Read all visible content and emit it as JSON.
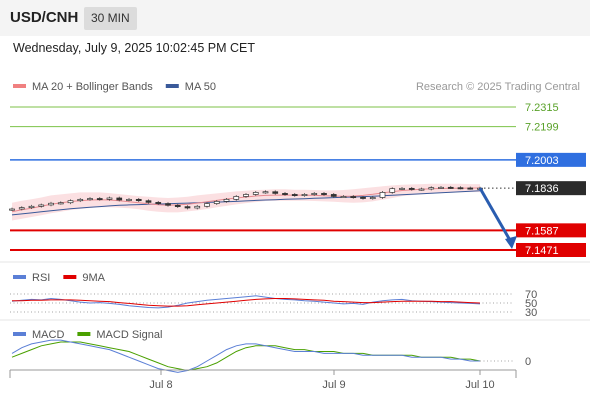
{
  "header": {
    "symbol": "USD/CNH",
    "timeframe": "30 MIN"
  },
  "datetime": "Wednesday, July 9, 2025 10:02:45 PM CET",
  "credit": "Research © 2025 Trading Central",
  "legend_main": [
    {
      "label": "MA 20 + Bollinger Bands",
      "color": "#f08080"
    },
    {
      "label": "MA 50",
      "color": "#3a5a9a"
    }
  ],
  "legend_rsi": [
    {
      "label": "RSI",
      "color": "#5b7fd6"
    },
    {
      "label": "9MA",
      "color": "#e00000"
    }
  ],
  "legend_macd": [
    {
      "label": "MACD",
      "color": "#5b7fd6"
    },
    {
      "label": "MACD Signal",
      "color": "#4aa000"
    }
  ],
  "colors": {
    "resistance": "#7cc247",
    "pivot": "#2f6fe0",
    "support": "#e00000",
    "last": "#2b2b2b",
    "arrow": "#2a5db0"
  },
  "chart_data": {
    "type": "line",
    "x_ticks": [
      "Jul 8",
      "Jul 9",
      "Jul 10"
    ],
    "levels": [
      {
        "value": 7.2315,
        "label": "7.2315",
        "kind": "resistance"
      },
      {
        "value": 7.2199,
        "label": "7.2199",
        "kind": "resistance"
      },
      {
        "value": 7.2003,
        "label": "7.2003",
        "kind": "pivot"
      },
      {
        "value": 7.1836,
        "label": "7.1836",
        "kind": "last"
      },
      {
        "value": 7.1587,
        "label": "7.1587",
        "kind": "support"
      },
      {
        "value": 7.1471,
        "label": "7.1471",
        "kind": "support"
      }
    ],
    "price": [
      7.1713,
      7.1721,
      7.1729,
      7.1737,
      7.1747,
      7.175,
      7.1762,
      7.177,
      7.1775,
      7.177,
      7.1778,
      7.1766,
      7.177,
      7.1762,
      7.1752,
      7.1745,
      7.1735,
      7.1727,
      7.1719,
      7.1729,
      7.1745,
      7.1758,
      7.177,
      7.1787,
      7.1799,
      7.1811,
      7.1815,
      7.1805,
      7.1799,
      7.1793,
      7.1799,
      7.1805,
      7.1799,
      7.1787,
      7.1787,
      7.1782,
      7.1776,
      7.1781,
      7.1811,
      7.1833,
      7.1835,
      7.1829,
      7.1831,
      7.1839,
      7.1841,
      7.1839,
      7.1837,
      7.1835,
      7.1836
    ],
    "ma20": [
      7.1697,
      7.1708,
      7.1718,
      7.1729,
      7.1741,
      7.1749,
      7.1757,
      7.1762,
      7.1766,
      7.1768,
      7.1766,
      7.1762,
      7.1756,
      7.175,
      7.1744,
      7.1738,
      7.1735,
      7.1737,
      7.1741,
      7.1748,
      7.1756,
      7.1764,
      7.1772,
      7.1778,
      7.1784,
      7.179,
      7.1793,
      7.1795,
      7.1795,
      7.1795,
      7.1795,
      7.1793,
      7.1791,
      7.1789,
      7.1788,
      7.1789,
      7.1793,
      7.18,
      7.1808,
      7.1815,
      7.1822,
      7.1826,
      7.1829,
      7.1832,
      7.1834,
      7.1836,
      7.1836,
      7.1837,
      7.1837
    ],
    "boll_upper": [
      7.175,
      7.1762,
      7.177,
      7.1781,
      7.1793,
      7.1799,
      7.1805,
      7.1811,
      7.1811,
      7.1811,
      7.1807,
      7.1801,
      7.1795,
      7.1789,
      7.1785,
      7.1781,
      7.1778,
      7.1781,
      7.1785,
      7.1793,
      7.1799,
      7.1805,
      7.1811,
      7.1817,
      7.1821,
      7.1825,
      7.1827,
      7.1829,
      7.1829,
      7.1827,
      7.1827,
      7.1825,
      7.1823,
      7.1823,
      7.1825,
      7.1829,
      7.1835,
      7.1841,
      7.1847,
      7.1852,
      7.1856,
      7.1858,
      7.186,
      7.1862,
      7.1862,
      7.1862,
      7.1862,
      7.186,
      7.186
    ],
    "boll_lower": [
      7.1645,
      7.1655,
      7.1666,
      7.1676,
      7.1688,
      7.1697,
      7.1707,
      7.1713,
      7.1719,
      7.1723,
      7.1723,
      7.1721,
      7.1717,
      7.1711,
      7.1703,
      7.1697,
      7.1693,
      7.1693,
      7.1699,
      7.1705,
      7.1713,
      7.1723,
      7.1731,
      7.174,
      7.1748,
      7.1754,
      7.176,
      7.1762,
      7.1762,
      7.1762,
      7.1762,
      7.176,
      7.1758,
      7.1756,
      7.1752,
      7.175,
      7.1752,
      7.1758,
      7.1768,
      7.1778,
      7.1789,
      7.1795,
      7.1799,
      7.1803,
      7.1807,
      7.1809,
      7.1811,
      7.1813,
      7.1813
    ],
    "ma50": [
      7.1678,
      7.1684,
      7.169,
      7.1697,
      7.1703,
      7.1709,
      7.1715,
      7.1719,
      7.1723,
      7.1727,
      7.1731,
      7.1735,
      7.1737,
      7.1739,
      7.1741,
      7.1742,
      7.1744,
      7.1746,
      7.1748,
      7.175,
      7.1752,
      7.1754,
      7.1756,
      7.1758,
      7.1761,
      7.1764,
      7.1766,
      7.1768,
      7.177,
      7.1772,
      7.1774,
      7.1776,
      7.1778,
      7.178,
      7.1782,
      7.1784,
      7.1786,
      7.1788,
      7.1791,
      7.1794,
      7.1797,
      7.18,
      7.1803,
      7.1806,
      7.1809,
      7.1812,
      7.1815,
      7.1818,
      7.1821
    ],
    "projection": {
      "from": 7.1836,
      "to": 7.1471
    },
    "ylim": [
      7.1471,
      7.2315
    ],
    "rsi": {
      "levels": [
        70,
        50,
        30
      ],
      "rsi": [
        54,
        56,
        58,
        57,
        60,
        58,
        55,
        52,
        50,
        51,
        49,
        47,
        44,
        42,
        40,
        39,
        41,
        45,
        50,
        53,
        56,
        58,
        60,
        62,
        64,
        66,
        63,
        60,
        58,
        57,
        55,
        54,
        52,
        50,
        48,
        49,
        47,
        52,
        55,
        57,
        58,
        55,
        54,
        53,
        52,
        51,
        50,
        49,
        48
      ],
      "ma9": [
        55,
        55,
        56,
        56,
        57,
        57,
        57,
        56,
        55,
        54,
        53,
        51,
        49,
        47,
        45,
        44,
        43,
        43,
        44,
        46,
        48,
        50,
        52,
        54,
        56,
        58,
        59,
        60,
        60,
        59,
        58,
        57,
        56,
        54,
        53,
        52,
        51,
        51,
        52,
        53,
        54,
        54,
        54,
        54,
        53,
        53,
        52,
        51,
        50
      ]
    },
    "macd": {
      "levels": [
        0
      ],
      "macd": [
        0.0004,
        0.0007,
        0.0009,
        0.001,
        0.0011,
        0.0011,
        0.001,
        0.0009,
        0.0008,
        0.0007,
        0.0006,
        0.0004,
        0.0002,
        0.0,
        -0.0002,
        -0.0004,
        -0.0005,
        -0.0006,
        -0.0005,
        -0.0003,
        0.0,
        0.0003,
        0.0006,
        0.0008,
        0.0009,
        0.0009,
        0.0008,
        0.0007,
        0.0006,
        0.0005,
        0.0005,
        0.0005,
        0.0004,
        0.0004,
        0.0004,
        0.0004,
        0.0003,
        0.0003,
        0.0003,
        0.0003,
        0.0003,
        0.0002,
        0.0002,
        0.0002,
        0.0002,
        0.0001,
        0.0001,
        0.0,
        0.0
      ],
      "signal": [
        0.0002,
        0.0004,
        0.0006,
        0.0008,
        0.0009,
        0.001,
        0.001,
        0.001,
        0.0009,
        0.0008,
        0.0007,
        0.0006,
        0.0005,
        0.0003,
        0.0001,
        -0.0001,
        -0.0003,
        -0.0004,
        -0.0005,
        -0.0004,
        -0.0003,
        -0.0001,
        0.0002,
        0.0005,
        0.0007,
        0.0008,
        0.0008,
        0.0008,
        0.0007,
        0.0006,
        0.0006,
        0.0005,
        0.0005,
        0.0005,
        0.0004,
        0.0004,
        0.0004,
        0.0003,
        0.0003,
        0.0003,
        0.0003,
        0.0003,
        0.0002,
        0.0002,
        0.0002,
        0.0002,
        0.0001,
        0.0001,
        0.0
      ],
      "ylim": [
        -0.0007,
        0.0013
      ]
    }
  }
}
